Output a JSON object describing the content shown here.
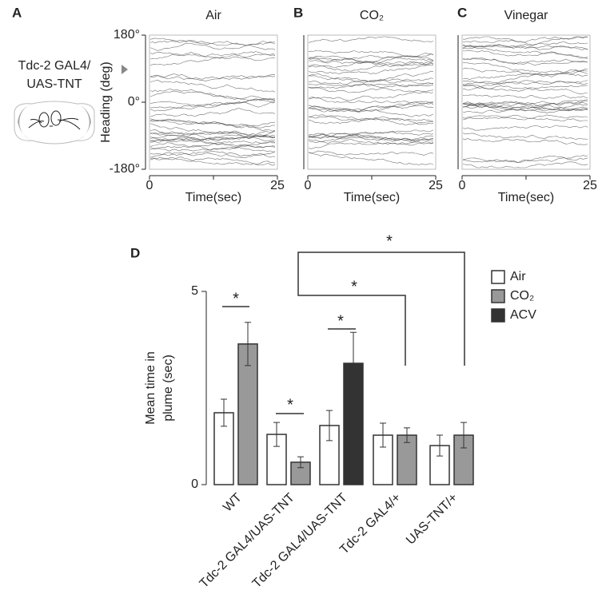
{
  "side_label": [
    "Tdc-2 GAL4/",
    "UAS-TNT"
  ],
  "chart_data": [
    {
      "type": "trace",
      "panel_label": "A",
      "title": "Air",
      "xlabel": "Time(sec)",
      "ylabel": "Heading (deg)",
      "xlim": [
        0,
        25
      ],
      "xticks": [
        0,
        25
      ],
      "ylim": [
        -180,
        180
      ],
      "yticks": [
        {
          "value": 180,
          "label": "180°"
        },
        {
          "value": 0,
          "label": "0°"
        },
        {
          "value": -180,
          "label": "-180°"
        }
      ]
    },
    {
      "type": "trace",
      "panel_label": "B",
      "title": "CO₂",
      "xlabel": "Time(sec)",
      "xlim": [
        0,
        25
      ],
      "xticks": [
        0,
        25
      ]
    },
    {
      "type": "trace",
      "panel_label": "C",
      "title": "Vinegar",
      "xlabel": "Time(sec)",
      "xlim": [
        0,
        25
      ],
      "xticks": [
        0,
        25
      ]
    },
    {
      "type": "bar",
      "panel_label": "D",
      "ylabel": "Mean time in plume (sec)",
      "categories": [
        "WT",
        "Tdc-2 GAL4/UAS-TNT",
        "Tdc-2 GAL4/UAS-TNT",
        "Tdc-2 GAL4/+",
        "UAS-TNT/+"
      ],
      "ylim": [
        0,
        5
      ],
      "yticks": [
        0,
        5
      ],
      "series": [
        {
          "name": "Air",
          "color": "#ffffff",
          "values": [
            1.86,
            1.3,
            1.53,
            1.28,
            1.01
          ],
          "errors": [
            0.35,
            0.31,
            0.39,
            0.31,
            0.27
          ]
        },
        {
          "name": "CO₂",
          "color": "#999999",
          "values": [
            3.64,
            0.58,
            null,
            1.28,
            1.28
          ],
          "errors": [
            0.56,
            0.14,
            null,
            0.19,
            0.33
          ]
        },
        {
          "name": "ACV",
          "color": "#333333",
          "values": [
            null,
            null,
            3.14,
            null,
            null
          ],
          "errors": [
            null,
            null,
            0.8,
            null,
            null
          ]
        }
      ],
      "annotations": [
        "*",
        "*",
        "*",
        "*",
        "*"
      ]
    }
  ]
}
